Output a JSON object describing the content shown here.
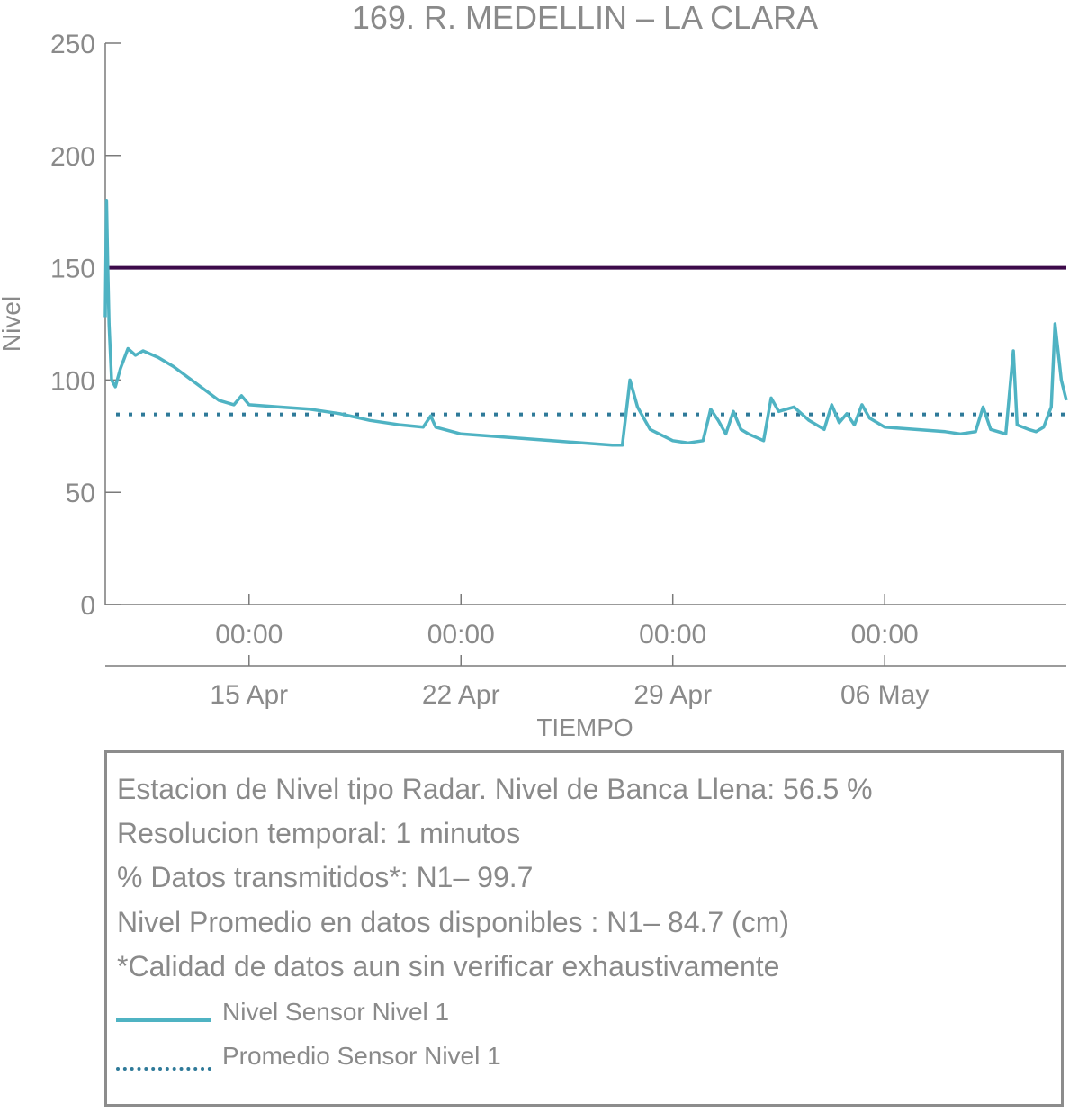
{
  "chart_data": {
    "type": "line",
    "title": "169. R. MEDELLIN – LA CLARA",
    "xlabel": "TIEMPO",
    "ylabel": "Nivel",
    "x_range": [
      "2024-04-10 06:00",
      "2024-05-12 00:00"
    ],
    "ylim": [
      0,
      250
    ],
    "y_ticks": [
      {
        "value": 0,
        "label": "0"
      },
      {
        "value": 50,
        "label": "50"
      },
      {
        "value": 100,
        "label": "100"
      },
      {
        "value": 150,
        "label": "150"
      },
      {
        "value": 200,
        "label": "200"
      },
      {
        "value": 250,
        "label": "250"
      }
    ],
    "x_ticks": [
      {
        "date": "2024-04-15 00:00",
        "time_label": "00:00",
        "date_label": "15 Apr"
      },
      {
        "date": "2024-04-22 00:00",
        "time_label": "00:00",
        "date_label": "22 Apr"
      },
      {
        "date": "2024-04-29 00:00",
        "time_label": "00:00",
        "date_label": "29 Apr"
      },
      {
        "date": "2024-05-06 00:00",
        "time_label": "00:00",
        "date_label": "06 May"
      }
    ],
    "grid": false,
    "series": [
      {
        "name": "Nivel Sensor Nivel 1",
        "color": "#4fb3c3",
        "style": "solid",
        "points": [
          [
            "2024-04-10 06:00",
            128
          ],
          [
            "2024-04-10 07:00",
            180
          ],
          [
            "2024-04-10 08:00",
            150
          ],
          [
            "2024-04-10 09:00",
            125
          ],
          [
            "2024-04-10 11:00",
            100
          ],
          [
            "2024-04-10 14:00",
            97
          ],
          [
            "2024-04-10 18:00",
            105
          ],
          [
            "2024-04-11 00:00",
            114
          ],
          [
            "2024-04-11 06:00",
            111
          ],
          [
            "2024-04-11 12:00",
            113
          ],
          [
            "2024-04-12 00:00",
            110
          ],
          [
            "2024-04-12 12:00",
            106
          ],
          [
            "2024-04-13 00:00",
            101
          ],
          [
            "2024-04-13 12:00",
            96
          ],
          [
            "2024-04-14 00:00",
            91
          ],
          [
            "2024-04-14 12:00",
            89
          ],
          [
            "2024-04-14 18:00",
            93
          ],
          [
            "2024-04-15 00:00",
            89
          ],
          [
            "2024-04-16 00:00",
            88
          ],
          [
            "2024-04-17 00:00",
            87
          ],
          [
            "2024-04-18 00:00",
            85
          ],
          [
            "2024-04-19 00:00",
            82
          ],
          [
            "2024-04-20 00:00",
            80
          ],
          [
            "2024-04-20 18:00",
            79
          ],
          [
            "2024-04-21 00:00",
            84
          ],
          [
            "2024-04-21 04:00",
            79
          ],
          [
            "2024-04-22 00:00",
            76
          ],
          [
            "2024-04-23 00:00",
            75
          ],
          [
            "2024-04-24 00:00",
            74
          ],
          [
            "2024-04-25 00:00",
            73
          ],
          [
            "2024-04-26 00:00",
            72
          ],
          [
            "2024-04-27 00:00",
            71
          ],
          [
            "2024-04-27 08:00",
            71
          ],
          [
            "2024-04-27 14:00",
            100
          ],
          [
            "2024-04-27 20:00",
            88
          ],
          [
            "2024-04-28 06:00",
            78
          ],
          [
            "2024-04-29 00:00",
            73
          ],
          [
            "2024-04-29 12:00",
            72
          ],
          [
            "2024-04-30 00:00",
            73
          ],
          [
            "2024-04-30 06:00",
            87
          ],
          [
            "2024-04-30 12:00",
            82
          ],
          [
            "2024-04-30 18:00",
            76
          ],
          [
            "2024-05-01 00:00",
            86
          ],
          [
            "2024-05-01 06:00",
            78
          ],
          [
            "2024-05-01 12:00",
            76
          ],
          [
            "2024-05-02 00:00",
            73
          ],
          [
            "2024-05-02 06:00",
            92
          ],
          [
            "2024-05-02 12:00",
            86
          ],
          [
            "2024-05-03 00:00",
            88
          ],
          [
            "2024-05-03 12:00",
            82
          ],
          [
            "2024-05-04 00:00",
            78
          ],
          [
            "2024-05-04 06:00",
            89
          ],
          [
            "2024-05-04 12:00",
            81
          ],
          [
            "2024-05-04 18:00",
            85
          ],
          [
            "2024-05-05 00:00",
            80
          ],
          [
            "2024-05-05 06:00",
            89
          ],
          [
            "2024-05-05 12:00",
            83
          ],
          [
            "2024-05-06 00:00",
            79
          ],
          [
            "2024-05-07 00:00",
            78
          ],
          [
            "2024-05-08 00:00",
            77
          ],
          [
            "2024-05-08 12:00",
            76
          ],
          [
            "2024-05-09 00:00",
            77
          ],
          [
            "2024-05-09 06:00",
            88
          ],
          [
            "2024-05-09 12:00",
            78
          ],
          [
            "2024-05-10 00:00",
            76
          ],
          [
            "2024-05-10 06:00",
            113
          ],
          [
            "2024-05-10 09:00",
            80
          ],
          [
            "2024-05-10 18:00",
            78
          ],
          [
            "2024-05-11 00:00",
            77
          ],
          [
            "2024-05-11 06:00",
            79
          ],
          [
            "2024-05-11 12:00",
            88
          ],
          [
            "2024-05-11 15:00",
            125
          ],
          [
            "2024-05-11 20:00",
            100
          ],
          [
            "2024-05-12 00:00",
            91
          ]
        ]
      },
      {
        "name": "Promedio Sensor Nivel 1",
        "color": "#2f7a99",
        "style": "dotted",
        "value": 84.7
      }
    ],
    "reference_lines": [
      {
        "value": 150,
        "color": "#3d0a4a",
        "style": "solid"
      }
    ],
    "info_box": {
      "lines": [
        "Estacion de Nivel tipo Radar. Nivel de Banca Llena: 56.5 %",
        "Resolucion temporal: 1 minutos",
        "% Datos transmitidos*: N1– 99.7",
        "Nivel Promedio en datos disponibles : N1– 84.7 (cm)",
        "*Calidad de datos aun sin verificar exhaustivamente"
      ],
      "legend": [
        {
          "label": "Nivel Sensor Nivel 1",
          "style": "solid",
          "color": "#4fb3c3"
        },
        {
          "label": "Promedio Sensor Nivel 1",
          "style": "dotted",
          "color": "#2f7a99"
        }
      ]
    }
  }
}
